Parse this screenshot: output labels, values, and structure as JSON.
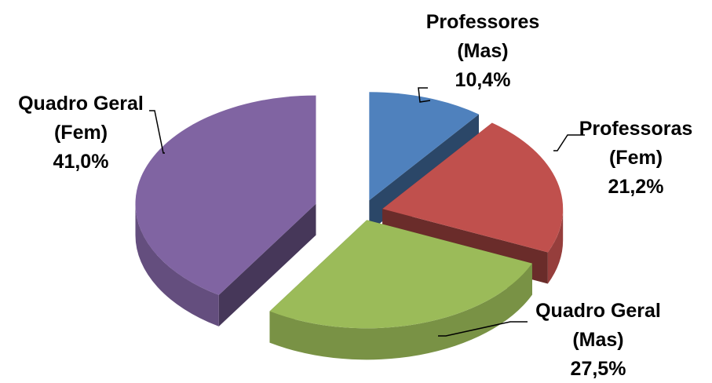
{
  "chart_data": {
    "type": "pie",
    "title": "",
    "slices": [
      {
        "label_lines": [
          "Professores",
          "(Mas)",
          "10,4%"
        ],
        "value": 10.4,
        "color": "#4F81BD"
      },
      {
        "label_lines": [
          "Professoras",
          "(Fem)",
          "21,2%"
        ],
        "value": 21.2,
        "color": "#C0504D"
      },
      {
        "label_lines": [
          "Quadro Geral",
          "(Mas)",
          "27,5%"
        ],
        "value": 27.5,
        "color": "#9BBB59"
      },
      {
        "label_lines": [
          "Quadro Geral",
          "(Fem)",
          "41,0%"
        ],
        "value": 41.0,
        "color": "#8064A2"
      }
    ],
    "start_angle_deg": 0,
    "direction": "clockwise",
    "exploded": true,
    "style": "3d",
    "legend": "none"
  }
}
